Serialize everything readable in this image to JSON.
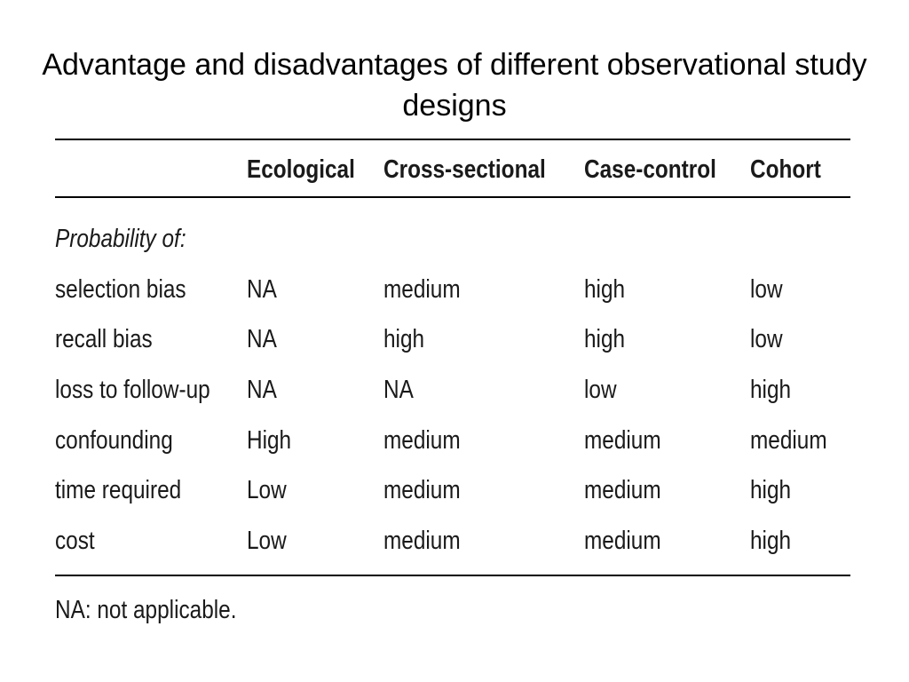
{
  "title": "Advantage and disadvantages of different observational study designs",
  "table": {
    "columns": [
      "Ecological",
      "Cross-sectional",
      "Case-control",
      "Cohort"
    ],
    "section_label": "Probability of:",
    "rows": [
      {
        "label": "selection bias",
        "values": [
          "NA",
          "medium",
          "high",
          "low"
        ]
      },
      {
        "label": "recall bias",
        "values": [
          "NA",
          "high",
          "high",
          "low"
        ]
      },
      {
        "label": "loss to follow-up",
        "values": [
          "NA",
          "NA",
          "low",
          "high"
        ]
      },
      {
        "label": "confounding",
        "values": [
          "High",
          "medium",
          "medium",
          "medium"
        ]
      },
      {
        "label": "time required",
        "values": [
          "Low",
          "medium",
          "medium",
          "high"
        ]
      },
      {
        "label": "cost",
        "values": [
          "Low",
          "medium",
          "medium",
          "high"
        ]
      }
    ],
    "footnote": "NA: not applicable."
  }
}
